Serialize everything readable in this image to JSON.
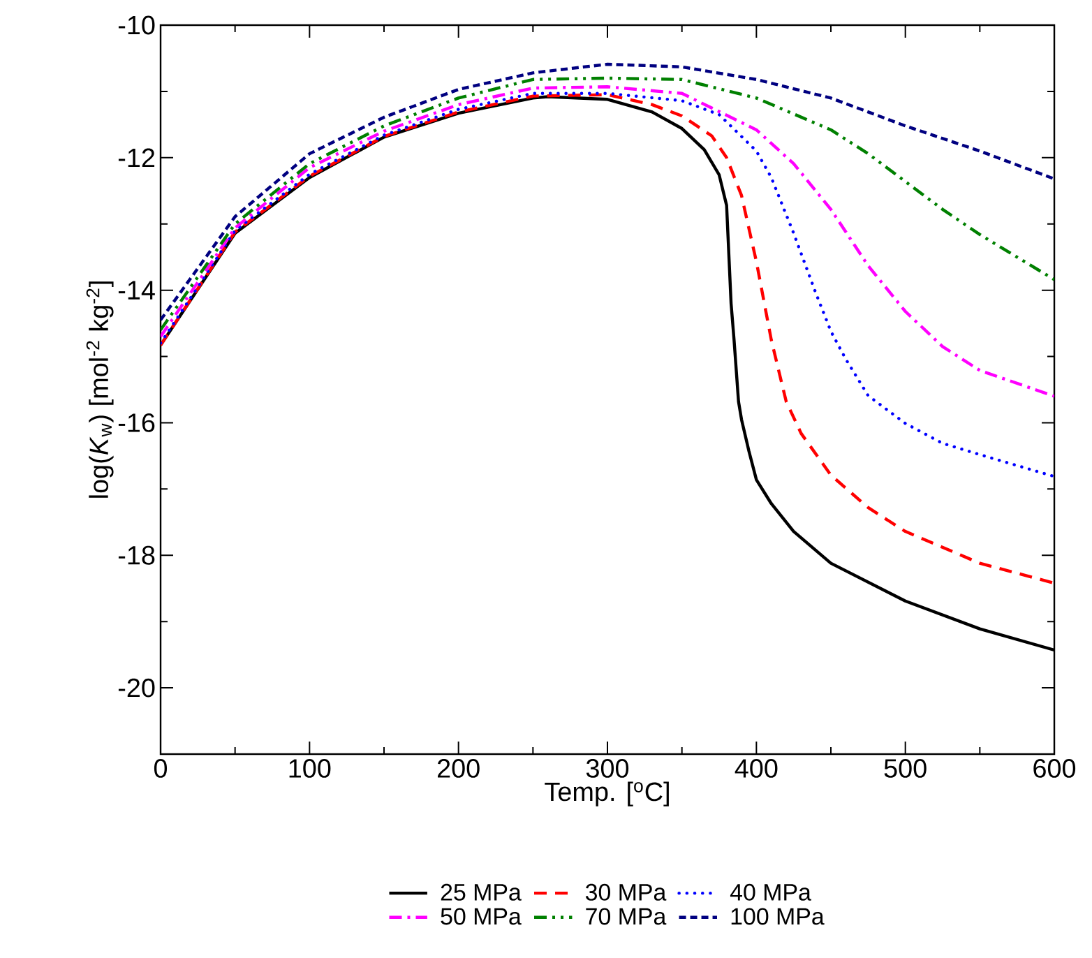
{
  "chart_data": {
    "type": "line",
    "xlabel": "Temp. [$^{o}$C]",
    "ylabel": "log(*K*$_{w}$) [mol$^{-2}$ kg$^{-2}$]",
    "xlim": [
      0,
      600
    ],
    "xticks": [
      0,
      100,
      200,
      300,
      400,
      500,
      600
    ],
    "ylim": [
      -21,
      -10
    ],
    "yticks": [
      -20,
      -18,
      -16,
      -14,
      -12,
      -10
    ],
    "legend": "bottom",
    "marker": "none",
    "series": [
      {
        "name": "25 MPa",
        "color": "#000000",
        "line_style": "solid",
        "x": [
          0,
          50,
          100,
          150,
          200,
          250,
          260,
          300,
          330,
          350,
          365,
          375,
          380,
          383,
          385,
          388,
          390,
          395,
          400,
          410,
          425,
          450,
          500,
          550,
          600
        ],
        "values": [
          -14.83,
          -13.14,
          -12.3,
          -11.69,
          -11.33,
          -11.1,
          -11.08,
          -11.12,
          -11.31,
          -11.56,
          -11.88,
          -12.26,
          -12.72,
          -14.2,
          -14.75,
          -15.68,
          -15.95,
          -16.43,
          -16.86,
          -17.22,
          -17.64,
          -18.12,
          -18.69,
          -19.11,
          -19.43
        ]
      },
      {
        "name": "30 MPa",
        "color": "#ff0000",
        "line_style": "dashed",
        "x": [
          0,
          50,
          100,
          150,
          200,
          250,
          300,
          330,
          350,
          370,
          380,
          390,
          400,
          410,
          420,
          430,
          450,
          475,
          500,
          550,
          600
        ],
        "values": [
          -14.83,
          -13.12,
          -12.28,
          -11.68,
          -11.31,
          -11.07,
          -11.05,
          -11.2,
          -11.37,
          -11.67,
          -12.0,
          -12.57,
          -13.57,
          -14.75,
          -15.68,
          -16.16,
          -16.79,
          -17.28,
          -17.64,
          -18.12,
          -18.42
        ]
      },
      {
        "name": "40 MPa",
        "color": "#0000ff",
        "line_style": "dotted",
        "x": [
          0,
          50,
          100,
          150,
          200,
          250,
          300,
          350,
          375,
          400,
          410,
          425,
          440,
          450,
          460,
          475,
          500,
          525,
          550,
          600
        ],
        "values": [
          -14.8,
          -13.1,
          -12.25,
          -11.66,
          -11.27,
          -11.03,
          -11.03,
          -11.14,
          -11.35,
          -11.9,
          -12.3,
          -13.14,
          -14.05,
          -14.62,
          -15.04,
          -15.59,
          -16.01,
          -16.31,
          -16.48,
          -16.81
        ]
      },
      {
        "name": "50 MPa",
        "color": "#ff00ff",
        "line_style": "dashdot",
        "x": [
          0,
          50,
          100,
          150,
          200,
          250,
          300,
          350,
          400,
          425,
          450,
          475,
          500,
          525,
          550,
          600
        ],
        "values": [
          -14.7,
          -13.06,
          -12.15,
          -11.6,
          -11.2,
          -10.95,
          -10.93,
          -11.03,
          -11.58,
          -12.09,
          -12.78,
          -13.63,
          -14.32,
          -14.85,
          -15.21,
          -15.6
        ]
      },
      {
        "name": "70 MPa",
        "color": "#008000",
        "line_style": "dashdotdot",
        "x": [
          0,
          50,
          100,
          150,
          200,
          250,
          300,
          350,
          400,
          450,
          475,
          500,
          525,
          550,
          600
        ],
        "values": [
          -14.6,
          -13.0,
          -12.09,
          -11.52,
          -11.1,
          -10.82,
          -10.8,
          -10.82,
          -11.1,
          -11.58,
          -11.94,
          -12.36,
          -12.78,
          -13.16,
          -13.84
        ]
      },
      {
        "name": "100 MPa",
        "color": "#000080",
        "line_style": "shortdash",
        "x": [
          0,
          50,
          100,
          150,
          200,
          250,
          300,
          350,
          400,
          450,
          500,
          550,
          600
        ],
        "values": [
          -14.45,
          -12.89,
          -11.94,
          -11.39,
          -10.97,
          -10.72,
          -10.59,
          -10.63,
          -10.82,
          -11.1,
          -11.52,
          -11.9,
          -12.32
        ]
      }
    ]
  }
}
